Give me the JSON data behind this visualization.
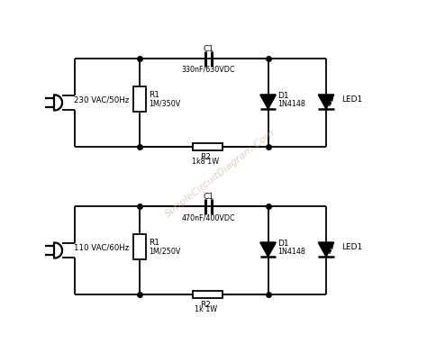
{
  "background_color": "#ffffff",
  "line_color": "#000000",
  "line_width": 1.3,
  "dot_size": 4,
  "circuit1": {
    "source_label": "230 VAC/50Hz",
    "cap_label": "C1",
    "cap_value": "330nF/630VDC",
    "r1_label": "R1",
    "r1_value": "1M/350V",
    "r2_label": "R2",
    "r2_value": "1k8 1W",
    "diode_label": "D1",
    "diode_value": "1N4148",
    "led_label": "LED1",
    "base_y": 7.0
  },
  "circuit2": {
    "source_label": "110 VAC/60Hz",
    "cap_label": "C1",
    "cap_value": "470nF/400VDC",
    "r1_label": "R1",
    "r1_value": "1M/250V",
    "r2_label": "R2",
    "r2_value": "1k 1W",
    "diode_label": "D1",
    "diode_value": "1N4148",
    "led_label": "LED1",
    "base_y": 2.8
  },
  "watermark": "SimpleCircuitDiagram.Com",
  "xlim": [
    0,
    10
  ],
  "ylim": [
    0,
    10
  ]
}
